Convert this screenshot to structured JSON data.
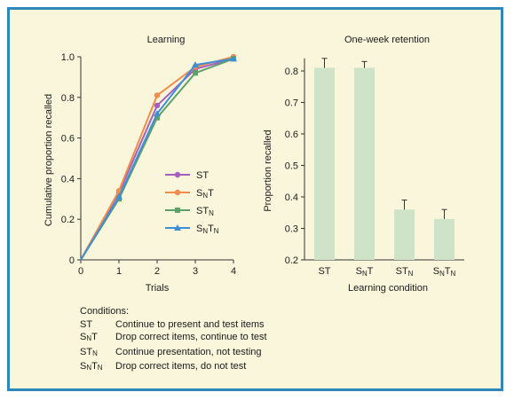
{
  "colors": {
    "frame": "#2f86b8",
    "background": "#faf6dc",
    "ST": "#a65fbf",
    "SNT": "#f08d4a",
    "STN": "#5ea16a",
    "SNTN": "#3d8fd6",
    "bar_fill": "#cfe3c8",
    "axis": "#333333"
  },
  "chart_data": [
    {
      "type": "line",
      "title": "Learning",
      "xlabel": "Trials",
      "ylabel": "Cumulative proportion recalled",
      "x": [
        0,
        1,
        2,
        3,
        4
      ],
      "xlim": [
        0,
        4
      ],
      "ylim": [
        0,
        1.0
      ],
      "xticks": [
        "0",
        "1",
        "2",
        "3",
        "4"
      ],
      "yticks": [
        "0",
        "0.2",
        "0.4",
        "0.6",
        "0.8",
        "1.0"
      ],
      "legend_position": "center-right",
      "series": [
        {
          "name": "ST",
          "name_parts": [
            [
              "S",
              ""
            ],
            [
              "T",
              ""
            ]
          ],
          "color_key": "ST",
          "marker": "circle",
          "values": [
            0,
            0.33,
            0.76,
            0.94,
            0.99
          ]
        },
        {
          "name": "SNT",
          "name_parts": [
            [
              "S",
              "N"
            ],
            [
              "T",
              ""
            ]
          ],
          "color_key": "SNT",
          "marker": "circle",
          "values": [
            0,
            0.34,
            0.81,
            0.95,
            1.0
          ]
        },
        {
          "name": "STN",
          "name_parts": [
            [
              "S",
              ""
            ],
            [
              "T",
              "N"
            ]
          ],
          "color_key": "STN",
          "marker": "square",
          "values": [
            0,
            0.3,
            0.7,
            0.92,
            0.99
          ]
        },
        {
          "name": "SNTN",
          "name_parts": [
            [
              "S",
              "N"
            ],
            [
              "T",
              "N"
            ]
          ],
          "color_key": "SNTN",
          "marker": "triangle",
          "values": [
            0,
            0.31,
            0.72,
            0.96,
            0.99
          ]
        }
      ]
    },
    {
      "type": "bar",
      "title": "One-week retention",
      "xlabel": "Learning condition",
      "ylabel": "Proportion recalled",
      "ylim": [
        0.2,
        0.8
      ],
      "yticks": [
        "0.2",
        "0.3",
        "0.4",
        "0.5",
        "0.6",
        "0.7",
        "0.8"
      ],
      "categories": [
        "ST",
        "SNT",
        "STN",
        "SNTN"
      ],
      "category_parts": [
        [
          [
            "S",
            ""
          ],
          [
            "T",
            ""
          ]
        ],
        [
          [
            "S",
            "N"
          ],
          [
            "T",
            ""
          ]
        ],
        [
          [
            "S",
            ""
          ],
          [
            "T",
            "N"
          ]
        ],
        [
          [
            "S",
            "N"
          ],
          [
            "T",
            "N"
          ]
        ]
      ],
      "values": [
        0.81,
        0.81,
        0.36,
        0.33
      ],
      "error": [
        0.03,
        0.02,
        0.03,
        0.03
      ]
    }
  ],
  "conditions": {
    "header": "Conditions:",
    "items": [
      {
        "code": "ST",
        "code_parts": [
          [
            "S",
            ""
          ],
          [
            "T",
            ""
          ]
        ],
        "text": "Continue to present and test items"
      },
      {
        "code": "SNT",
        "code_parts": [
          [
            "S",
            "N"
          ],
          [
            "T",
            ""
          ]
        ],
        "text": "Drop correct items, continue to test"
      },
      {
        "code": "STN",
        "code_parts": [
          [
            "S",
            ""
          ],
          [
            "T",
            "N"
          ]
        ],
        "text": "Continue presentation, not testing"
      },
      {
        "code": "SNTN",
        "code_parts": [
          [
            "S",
            "N"
          ],
          [
            "T",
            "N"
          ]
        ],
        "text": "Drop correct items, do not test"
      }
    ]
  }
}
